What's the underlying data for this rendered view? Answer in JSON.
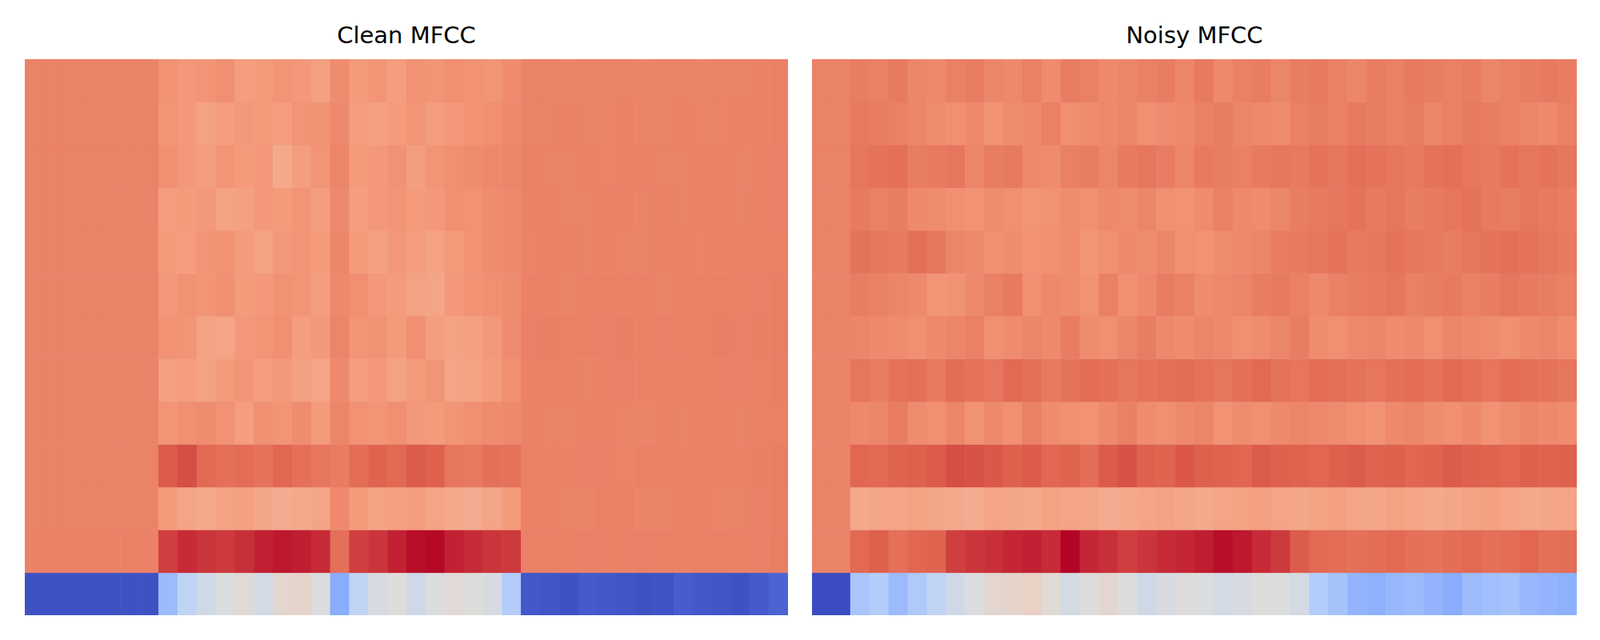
{
  "chart_data": [
    {
      "type": "heatmap",
      "title": "Clean MFCC",
      "tick_labels": false,
      "color_range": [
        -600,
        150
      ],
      "cells": [
        [
          -590,
          -590,
          -590,
          -590,
          -590,
          -590,
          -590,
          -380,
          -300,
          -260,
          -230,
          -210,
          -250,
          -200,
          -190,
          -230,
          -420,
          -300,
          -240,
          -220,
          -260,
          -230,
          -210,
          -220,
          -240,
          -330,
          -580,
          -585,
          -590,
          -575,
          -580,
          -585,
          -590,
          -588,
          -570,
          -580,
          -585,
          -590,
          -575,
          -560
        ],
        [
          2,
          2,
          2,
          2,
          2,
          2,
          2,
          90,
          110,
          100,
          95,
          105,
          120,
          130,
          125,
          110,
          30,
          90,
          100,
          120,
          140,
          145,
          120,
          110,
          100,
          95,
          5,
          3,
          2,
          4,
          3,
          2,
          4,
          3,
          2,
          5,
          3,
          2,
          4,
          8
        ],
        [
          0,
          0,
          0,
          0,
          0,
          0,
          0,
          -40,
          -60,
          -70,
          -55,
          -50,
          -65,
          -75,
          -70,
          -60,
          -10,
          -40,
          -55,
          -50,
          -45,
          -60,
          -70,
          -75,
          -60,
          -40,
          2,
          1,
          -1,
          0,
          3,
          1,
          -2,
          0,
          1,
          2,
          -1,
          0,
          4,
          6
        ],
        [
          0,
          0,
          0,
          0,
          0,
          0,
          0,
          60,
          75,
          40,
          30,
          35,
          25,
          45,
          30,
          20,
          10,
          35,
          50,
          40,
          60,
          55,
          20,
          15,
          30,
          25,
          3,
          2,
          1,
          4,
          2,
          0,
          3,
          1,
          2,
          5,
          3,
          2,
          6,
          8
        ],
        [
          0,
          0,
          0,
          0,
          0,
          0,
          0,
          -30,
          -20,
          -15,
          -25,
          -45,
          -20,
          -30,
          -15,
          -40,
          -5,
          -25,
          -30,
          -20,
          -35,
          -40,
          -30,
          -20,
          -15,
          -10,
          1,
          0,
          -1,
          2,
          1,
          0,
          -2,
          1,
          0,
          2,
          1,
          -1,
          3,
          5
        ],
        [
          0,
          0,
          0,
          0,
          0,
          0,
          0,
          -50,
          -45,
          -55,
          -40,
          -30,
          -45,
          -35,
          -50,
          -60,
          -10,
          -45,
          -35,
          -55,
          -40,
          -30,
          -60,
          -55,
          -40,
          -20,
          2,
          3,
          1,
          0,
          2,
          4,
          1,
          2,
          3,
          1,
          2,
          4,
          5,
          7
        ],
        [
          0,
          0,
          0,
          0,
          0,
          0,
          0,
          -25,
          -30,
          -55,
          -60,
          -35,
          -30,
          -20,
          -45,
          -35,
          -5,
          -30,
          -25,
          -40,
          -20,
          -45,
          -55,
          -50,
          -35,
          -15,
          4,
          6,
          5,
          3,
          4,
          6,
          5,
          4,
          3,
          5,
          6,
          4,
          6,
          8
        ],
        [
          0,
          0,
          0,
          0,
          0,
          0,
          0,
          -35,
          -25,
          -30,
          -20,
          -40,
          -35,
          -25,
          -30,
          -45,
          -10,
          -20,
          -35,
          -40,
          -55,
          -60,
          -35,
          -25,
          -20,
          -15,
          1,
          2,
          0,
          1,
          3,
          2,
          1,
          0,
          2,
          1,
          3,
          2,
          4,
          6
        ],
        [
          0,
          0,
          0,
          0,
          0,
          0,
          0,
          -40,
          -45,
          -30,
          -25,
          -40,
          -55,
          -35,
          -30,
          -40,
          -5,
          -40,
          -50,
          -35,
          -45,
          -55,
          -40,
          -25,
          -15,
          -10,
          0,
          1,
          2,
          0,
          1,
          -1,
          0,
          2,
          1,
          0,
          1,
          2,
          3,
          5
        ],
        [
          0,
          0,
          0,
          0,
          0,
          0,
          0,
          -45,
          -40,
          -35,
          -55,
          -50,
          -35,
          -40,
          -30,
          -45,
          -10,
          -45,
          -35,
          -30,
          -40,
          -35,
          -20,
          -25,
          -15,
          -10,
          2,
          1,
          0,
          -1,
          1,
          2,
          0,
          1,
          -1,
          2,
          1,
          0,
          3,
          4
        ],
        [
          0,
          0,
          0,
          0,
          0,
          0,
          0,
          -20,
          -35,
          -45,
          -30,
          -40,
          -35,
          -70,
          -45,
          -30,
          -5,
          -40,
          -35,
          -25,
          -45,
          -30,
          -20,
          -15,
          -10,
          -5,
          1,
          0,
          -1,
          1,
          0,
          2,
          1,
          -1,
          0,
          1,
          2,
          0,
          2,
          4
        ],
        [
          0,
          0,
          0,
          0,
          0,
          0,
          0,
          -30,
          -35,
          -55,
          -45,
          -35,
          -40,
          -45,
          -30,
          -25,
          -10,
          -45,
          -50,
          -40,
          -30,
          -45,
          -35,
          -25,
          -20,
          -10,
          0,
          -1,
          1,
          0,
          -2,
          1,
          0,
          -1,
          1,
          0,
          -1,
          1,
          2,
          3
        ],
        [
          0,
          0,
          0,
          0,
          0,
          0,
          0,
          -25,
          -35,
          -30,
          -20,
          -45,
          -40,
          -30,
          -35,
          -50,
          -15,
          -40,
          -30,
          -45,
          -25,
          -30,
          -20,
          -25,
          -30,
          -15,
          -1,
          0,
          -2,
          -1,
          0,
          -1,
          -2,
          0,
          -1,
          -2,
          0,
          -1,
          1,
          3
        ]
      ]
    },
    {
      "type": "heatmap",
      "title": "Noisy MFCC",
      "tick_labels": false,
      "color_range": [
        -600,
        150
      ],
      "cells": [
        [
          -600,
          -600,
          -350,
          -330,
          -380,
          -340,
          -300,
          -260,
          -230,
          -200,
          -190,
          -180,
          -210,
          -250,
          -220,
          -200,
          -230,
          -260,
          -240,
          -220,
          -230,
          -250,
          -240,
          -220,
          -230,
          -250,
          -330,
          -360,
          -400,
          -410,
          -390,
          -380,
          -400,
          -420,
          -380,
          -370,
          -360,
          -390,
          -400,
          -410
        ],
        [
          0,
          0,
          40,
          55,
          30,
          45,
          50,
          90,
          100,
          105,
          115,
          120,
          110,
          150,
          115,
          105,
          90,
          100,
          110,
          115,
          125,
          140,
          130,
          110,
          95,
          60,
          40,
          35,
          30,
          35,
          40,
          30,
          25,
          35,
          40,
          30,
          35,
          45,
          30,
          35
        ],
        [
          0,
          0,
          -70,
          -65,
          -60,
          -55,
          -65,
          -70,
          -75,
          -60,
          -65,
          -70,
          -55,
          -60,
          -65,
          -75,
          -70,
          -60,
          -55,
          -65,
          -70,
          -60,
          -55,
          -50,
          -60,
          -65,
          -55,
          -50,
          -60,
          -65,
          -55,
          -60,
          -70,
          -65,
          -55,
          -50,
          -60,
          -70,
          -65,
          -60
        ],
        [
          0,
          0,
          45,
          40,
          50,
          55,
          60,
          75,
          70,
          65,
          55,
          60,
          45,
          50,
          35,
          60,
          70,
          55,
          50,
          65,
          55,
          50,
          45,
          60,
          55,
          50,
          45,
          55,
          60,
          50,
          55,
          45,
          50,
          60,
          55,
          50,
          45,
          55,
          50,
          55
        ],
        [
          0,
          0,
          -10,
          -5,
          10,
          -15,
          -20,
          -5,
          -25,
          -10,
          -20,
          5,
          -15,
          -20,
          -25,
          -10,
          5,
          -15,
          -20,
          -10,
          -5,
          -25,
          -15,
          -20,
          -10,
          -5,
          -10,
          -15,
          -20,
          -25,
          -10,
          -5,
          -15,
          -20,
          -10,
          -25,
          -15,
          -5,
          -10,
          -15
        ],
        [
          0,
          0,
          20,
          10,
          25,
          30,
          15,
          35,
          25,
          20,
          40,
          30,
          15,
          25,
          35,
          30,
          20,
          25,
          30,
          35,
          25,
          20,
          30,
          40,
          25,
          20,
          35,
          30,
          25,
          20,
          30,
          35,
          25,
          40,
          30,
          20,
          35,
          30,
          25,
          20
        ],
        [
          0,
          0,
          -5,
          -10,
          -15,
          -20,
          -10,
          -5,
          5,
          -20,
          -15,
          -5,
          -10,
          10,
          -15,
          -20,
          -5,
          10,
          -10,
          -15,
          -5,
          -10,
          -20,
          -15,
          -5,
          10,
          -15,
          -20,
          -10,
          -5,
          -15,
          -10,
          -20,
          -5,
          -10,
          -15,
          -20,
          -10,
          -5,
          -15
        ],
        [
          0,
          0,
          10,
          5,
          -5,
          -10,
          -30,
          -25,
          -10,
          5,
          15,
          -20,
          -10,
          -15,
          -25,
          5,
          -20,
          -10,
          10,
          5,
          -15,
          -10,
          -5,
          10,
          15,
          5,
          -10,
          5,
          10,
          15,
          20,
          5,
          10,
          15,
          5,
          10,
          20,
          15,
          10,
          5
        ],
        [
          0,
          0,
          25,
          20,
          15,
          30,
          20,
          -5,
          -10,
          -20,
          -15,
          -25,
          -20,
          -15,
          -30,
          -20,
          -10,
          -15,
          -5,
          -20,
          -25,
          -15,
          -10,
          -5,
          10,
          15,
          20,
          25,
          15,
          20,
          25,
          20,
          15,
          10,
          20,
          25,
          30,
          25,
          20,
          15
        ],
        [
          0,
          0,
          15,
          5,
          10,
          -10,
          -15,
          -20,
          -25,
          -15,
          -20,
          -30,
          -25,
          -15,
          -20,
          -10,
          -15,
          -5,
          -20,
          -25,
          -15,
          5,
          -10,
          -15,
          -5,
          10,
          15,
          20,
          25,
          15,
          20,
          10,
          15,
          20,
          25,
          15,
          10,
          20,
          15,
          10
        ],
        [
          0,
          0,
          20,
          25,
          30,
          10,
          15,
          20,
          -5,
          10,
          15,
          -10,
          -15,
          5,
          10,
          -5,
          15,
          20,
          10,
          -5,
          15,
          10,
          5,
          15,
          20,
          15,
          25,
          20,
          30,
          25,
          20,
          15,
          25,
          30,
          20,
          15,
          25,
          20,
          25,
          20
        ],
        [
          0,
          0,
          15,
          10,
          5,
          -5,
          -15,
          -20,
          -10,
          -25,
          -15,
          -10,
          5,
          -20,
          -15,
          -10,
          -5,
          -20,
          -15,
          -10,
          5,
          10,
          -5,
          -10,
          -15,
          5,
          10,
          5,
          15,
          10,
          5,
          10,
          -5,
          5,
          15,
          10,
          5,
          -5,
          -10,
          5
        ],
        [
          0,
          0,
          10,
          5,
          15,
          -5,
          -10,
          5,
          10,
          -5,
          -10,
          5,
          -15,
          10,
          5,
          -10,
          -5,
          5,
          10,
          -5,
          15,
          -10,
          5,
          10,
          -5,
          10,
          15,
          5,
          -5,
          10,
          5,
          15,
          10,
          5,
          10,
          -5,
          5,
          10,
          15,
          10
        ]
      ]
    }
  ]
}
